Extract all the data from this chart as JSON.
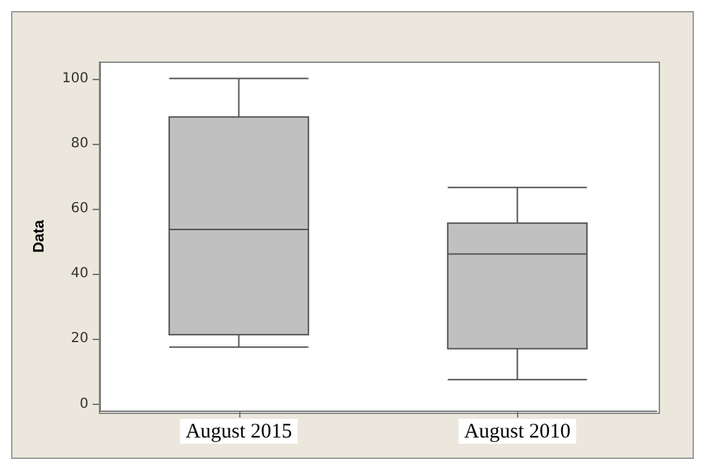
{
  "chart_data": {
    "type": "box",
    "ylabel": "Data",
    "categories": [
      "August 2015",
      "August 2010"
    ],
    "boxes": [
      {
        "low": 17.5,
        "q1": 21.3,
        "median": 53.6,
        "q3": 88.2,
        "high": 100
      },
      {
        "low": 7.5,
        "q1": 17,
        "median": 46.1,
        "q3": 55.6,
        "high": 66.5
      }
    ],
    "color": "#c0c0c0",
    "ylim": [
      -2,
      105
    ],
    "yticks": [
      0,
      20,
      40,
      60,
      80,
      100
    ],
    "grid": false
  }
}
